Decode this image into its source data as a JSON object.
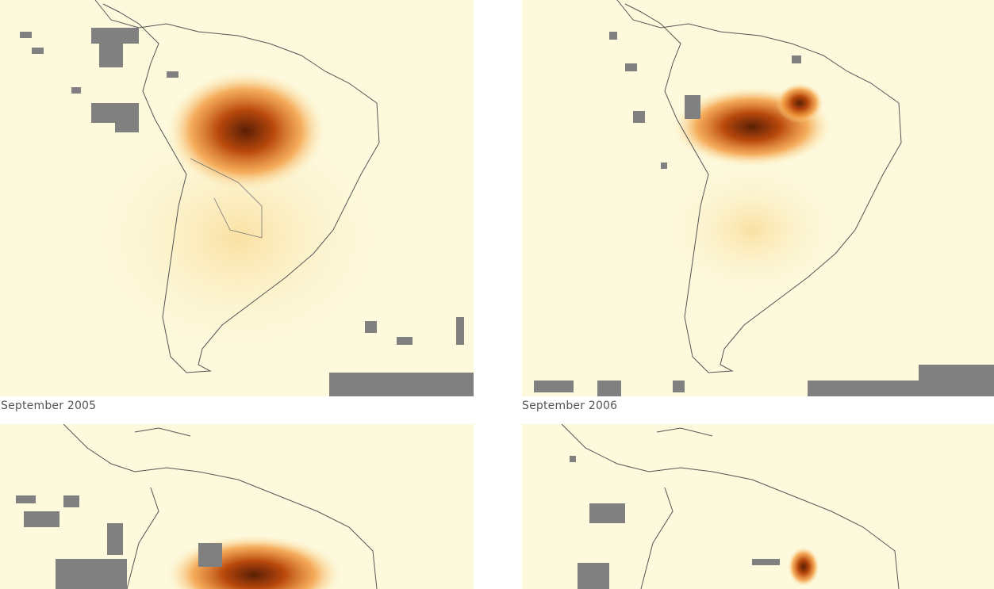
{
  "panels": [
    {
      "label": "September 2005"
    },
    {
      "label": "September 2006"
    },
    {
      "label": ""
    },
    {
      "label": ""
    }
  ],
  "colors": {
    "background": "#fdf9dc",
    "no_data": "#808080",
    "low": "#fce9b0",
    "medium": "#f39a3c",
    "high": "#b8480c",
    "very_high": "#5a1f05",
    "coastline": "#555555"
  }
}
